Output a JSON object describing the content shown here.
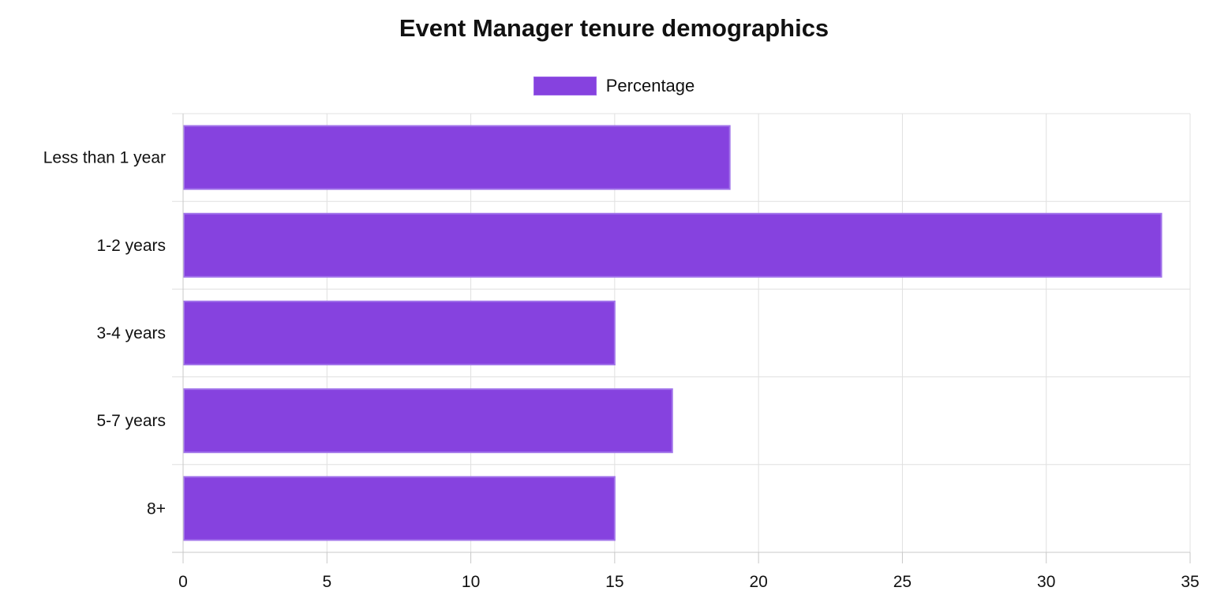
{
  "chart_data": {
    "type": "bar",
    "orientation": "horizontal",
    "title": "Event Manager tenure demographics",
    "categories": [
      "Less than 1 year",
      "1-2 years",
      "3-4 years",
      "5-7 years",
      "8+"
    ],
    "series": [
      {
        "name": "Percentage",
        "values": [
          19,
          34,
          15,
          17,
          15
        ],
        "color": "#8642df"
      }
    ],
    "xlim": [
      0,
      35
    ],
    "x_ticks": [
      0,
      5,
      10,
      15,
      20,
      25,
      30,
      35
    ],
    "grid": true,
    "legend_position": "top-center",
    "grid_color": "#e0e0e0",
    "axis_color": "#c8c8c8"
  }
}
